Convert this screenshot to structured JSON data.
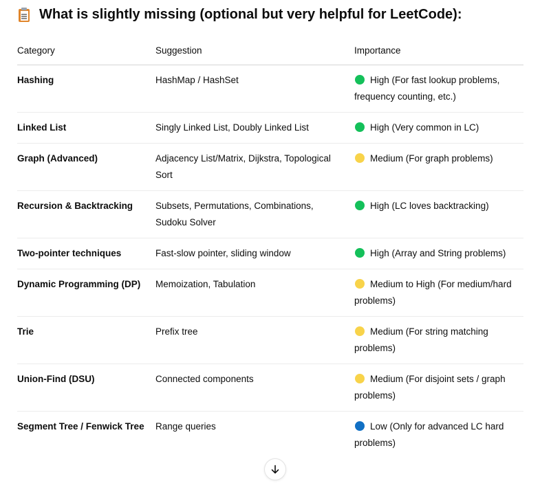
{
  "heading": {
    "icon": "clipboard-icon",
    "text": "What is slightly missing (optional but very helpful for LeetCode):"
  },
  "table": {
    "headers": {
      "category": "Category",
      "suggestion": "Suggestion",
      "importance": "Importance"
    },
    "status_colors": {
      "green": "#14c05a",
      "yellow": "#f8d34a",
      "blue": "#1170c4"
    },
    "rows": [
      {
        "category": "Hashing",
        "suggestion": "HashMap / HashSet",
        "importance_level": "green",
        "importance": "High (For fast lookup problems, frequency counting, etc.)"
      },
      {
        "category": "Linked List",
        "suggestion": "Singly Linked List, Doubly Linked List",
        "importance_level": "green",
        "importance": "High (Very common in LC)"
      },
      {
        "category": "Graph (Advanced)",
        "suggestion": "Adjacency List/Matrix, Dijkstra, Topological Sort",
        "importance_level": "yellow",
        "importance": "Medium (For graph problems)"
      },
      {
        "category": "Recursion & Backtracking",
        "suggestion": "Subsets, Permutations, Combinations, Sudoku Solver",
        "importance_level": "green",
        "importance": "High (LC loves backtracking)"
      },
      {
        "category": "Two-pointer techniques",
        "suggestion": "Fast-slow pointer, sliding window",
        "importance_level": "green",
        "importance": "High (Array and String problems)"
      },
      {
        "category": "Dynamic Programming (DP)",
        "suggestion": "Memoization, Tabulation",
        "importance_level": "yellow",
        "importance": "Medium to High (For medium/hard problems)"
      },
      {
        "category": "Trie",
        "suggestion": "Prefix tree",
        "importance_level": "yellow",
        "importance": "Medium (For string matching problems)"
      },
      {
        "category": "Union-Find (DSU)",
        "suggestion": "Connected components",
        "importance_level": "yellow",
        "importance": "Medium (For disjoint sets / graph problems)"
      },
      {
        "category": "Segment Tree / Fenwick Tree",
        "suggestion": "Range queries",
        "importance_level": "blue",
        "importance": "Low (Only for advanced LC hard problems)"
      }
    ]
  },
  "scroll_button": {
    "icon": "arrow-down-icon"
  }
}
